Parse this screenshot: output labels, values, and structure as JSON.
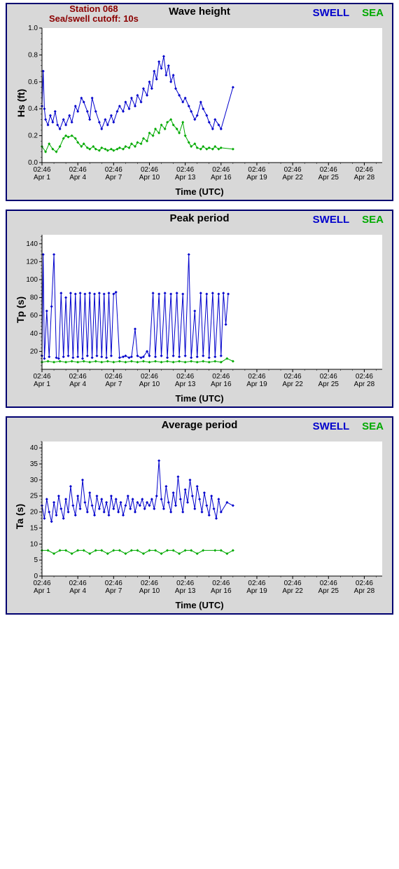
{
  "station_line1": "Station 068",
  "station_line2": "Sea/swell cutoff: 10s",
  "legend_swell": "SWELL",
  "legend_sea": "SEA",
  "xlabel": "Time (UTC)",
  "colors": {
    "swell": "#0000cc",
    "sea": "#00aa00",
    "panel_bg": "#d8d8d8",
    "plot_bg": "#ffffff",
    "border": "#000070",
    "axis": "#000000",
    "station_text": "#8b0000"
  },
  "x_axis": {
    "domain_days": [
      0,
      28.5
    ],
    "ticks_days": [
      0,
      3,
      6,
      9,
      12,
      15,
      18,
      21,
      24,
      27
    ],
    "tick_time": "02:46",
    "tick_dates": [
      "Apr 1",
      "Apr 4",
      "Apr 7",
      "Apr 10",
      "Apr 13",
      "Apr 16",
      "Apr 19",
      "Apr 22",
      "Apr 25",
      "Apr 28"
    ]
  },
  "charts": [
    {
      "title": "Wave height",
      "ylabel": "Hs (ft)",
      "show_station": true,
      "ylim": [
        0.0,
        1.0
      ],
      "yticks": [
        0.0,
        0.2,
        0.4,
        0.6,
        0.8,
        1.0
      ],
      "ytick_labels": [
        "0.0",
        "0.2",
        "0.4",
        "0.6",
        "0.8",
        "1.0"
      ],
      "swell": [
        [
          0.0,
          0.42
        ],
        [
          0.1,
          0.68
        ],
        [
          0.2,
          0.4
        ],
        [
          0.3,
          0.32
        ],
        [
          0.5,
          0.28
        ],
        [
          0.7,
          0.35
        ],
        [
          0.9,
          0.3
        ],
        [
          1.1,
          0.38
        ],
        [
          1.3,
          0.28
        ],
        [
          1.5,
          0.25
        ],
        [
          1.8,
          0.32
        ],
        [
          2.0,
          0.28
        ],
        [
          2.3,
          0.35
        ],
        [
          2.5,
          0.3
        ],
        [
          2.8,
          0.42
        ],
        [
          3.0,
          0.38
        ],
        [
          3.3,
          0.48
        ],
        [
          3.5,
          0.45
        ],
        [
          3.8,
          0.38
        ],
        [
          4.0,
          0.32
        ],
        [
          4.2,
          0.48
        ],
        [
          4.5,
          0.38
        ],
        [
          4.8,
          0.3
        ],
        [
          5.0,
          0.25
        ],
        [
          5.3,
          0.32
        ],
        [
          5.5,
          0.28
        ],
        [
          5.8,
          0.35
        ],
        [
          6.0,
          0.3
        ],
        [
          6.3,
          0.38
        ],
        [
          6.5,
          0.42
        ],
        [
          6.8,
          0.38
        ],
        [
          7.0,
          0.45
        ],
        [
          7.3,
          0.4
        ],
        [
          7.5,
          0.48
        ],
        [
          7.8,
          0.42
        ],
        [
          8.0,
          0.5
        ],
        [
          8.3,
          0.45
        ],
        [
          8.5,
          0.55
        ],
        [
          8.8,
          0.5
        ],
        [
          9.0,
          0.6
        ],
        [
          9.2,
          0.55
        ],
        [
          9.4,
          0.68
        ],
        [
          9.6,
          0.62
        ],
        [
          9.8,
          0.75
        ],
        [
          10.0,
          0.7
        ],
        [
          10.2,
          0.79
        ],
        [
          10.4,
          0.65
        ],
        [
          10.6,
          0.72
        ],
        [
          10.8,
          0.6
        ],
        [
          11.0,
          0.65
        ],
        [
          11.2,
          0.55
        ],
        [
          11.5,
          0.5
        ],
        [
          11.8,
          0.45
        ],
        [
          12.0,
          0.48
        ],
        [
          12.3,
          0.42
        ],
        [
          12.5,
          0.38
        ],
        [
          12.8,
          0.32
        ],
        [
          13.0,
          0.35
        ],
        [
          13.3,
          0.45
        ],
        [
          13.5,
          0.4
        ],
        [
          13.8,
          0.35
        ],
        [
          14.0,
          0.3
        ],
        [
          14.3,
          0.25
        ],
        [
          14.5,
          0.32
        ],
        [
          14.8,
          0.28
        ],
        [
          15.0,
          0.25
        ],
        [
          16.0,
          0.56
        ]
      ],
      "sea": [
        [
          0.0,
          0.12
        ],
        [
          0.3,
          0.08
        ],
        [
          0.6,
          0.14
        ],
        [
          0.9,
          0.1
        ],
        [
          1.2,
          0.08
        ],
        [
          1.5,
          0.12
        ],
        [
          1.8,
          0.18
        ],
        [
          2.0,
          0.2
        ],
        [
          2.2,
          0.19
        ],
        [
          2.5,
          0.2
        ],
        [
          2.8,
          0.18
        ],
        [
          3.0,
          0.15
        ],
        [
          3.3,
          0.12
        ],
        [
          3.5,
          0.14
        ],
        [
          3.8,
          0.11
        ],
        [
          4.0,
          0.1
        ],
        [
          4.3,
          0.12
        ],
        [
          4.5,
          0.1
        ],
        [
          4.8,
          0.09
        ],
        [
          5.0,
          0.11
        ],
        [
          5.3,
          0.1
        ],
        [
          5.5,
          0.09
        ],
        [
          5.8,
          0.1
        ],
        [
          6.0,
          0.09
        ],
        [
          6.3,
          0.1
        ],
        [
          6.5,
          0.11
        ],
        [
          6.8,
          0.1
        ],
        [
          7.0,
          0.12
        ],
        [
          7.3,
          0.11
        ],
        [
          7.5,
          0.14
        ],
        [
          7.8,
          0.12
        ],
        [
          8.0,
          0.15
        ],
        [
          8.3,
          0.14
        ],
        [
          8.5,
          0.18
        ],
        [
          8.8,
          0.16
        ],
        [
          9.0,
          0.22
        ],
        [
          9.3,
          0.2
        ],
        [
          9.5,
          0.25
        ],
        [
          9.8,
          0.22
        ],
        [
          10.0,
          0.28
        ],
        [
          10.3,
          0.25
        ],
        [
          10.5,
          0.3
        ],
        [
          10.8,
          0.32
        ],
        [
          11.0,
          0.28
        ],
        [
          11.3,
          0.25
        ],
        [
          11.5,
          0.22
        ],
        [
          11.8,
          0.3
        ],
        [
          12.0,
          0.2
        ],
        [
          12.3,
          0.15
        ],
        [
          12.5,
          0.12
        ],
        [
          12.8,
          0.14
        ],
        [
          13.0,
          0.11
        ],
        [
          13.3,
          0.1
        ],
        [
          13.5,
          0.12
        ],
        [
          13.8,
          0.1
        ],
        [
          14.0,
          0.11
        ],
        [
          14.3,
          0.1
        ],
        [
          14.5,
          0.12
        ],
        [
          14.8,
          0.1
        ],
        [
          15.0,
          0.11
        ],
        [
          16.0,
          0.1
        ]
      ]
    },
    {
      "title": "Peak period",
      "ylabel": "Tp (s)",
      "show_station": false,
      "ylim": [
        0,
        150
      ],
      "yticks": [
        20,
        40,
        60,
        80,
        100,
        120,
        140
      ],
      "ytick_labels": [
        "20",
        "40",
        "60",
        "80",
        "100",
        "120",
        "140"
      ],
      "swell": [
        [
          0.0,
          15
        ],
        [
          0.1,
          128
        ],
        [
          0.2,
          12
        ],
        [
          0.4,
          65
        ],
        [
          0.6,
          14
        ],
        [
          0.8,
          70
        ],
        [
          1.0,
          128
        ],
        [
          1.2,
          13
        ],
        [
          1.4,
          12
        ],
        [
          1.6,
          85
        ],
        [
          1.8,
          14
        ],
        [
          2.0,
          80
        ],
        [
          2.2,
          15
        ],
        [
          2.4,
          85
        ],
        [
          2.6,
          13
        ],
        [
          2.8,
          84
        ],
        [
          3.0,
          14
        ],
        [
          3.2,
          85
        ],
        [
          3.4,
          12
        ],
        [
          3.6,
          84
        ],
        [
          3.8,
          15
        ],
        [
          4.0,
          85
        ],
        [
          4.2,
          13
        ],
        [
          4.4,
          84
        ],
        [
          4.6,
          15
        ],
        [
          4.8,
          85
        ],
        [
          5.0,
          14
        ],
        [
          5.2,
          84
        ],
        [
          5.4,
          13
        ],
        [
          5.6,
          85
        ],
        [
          5.8,
          15
        ],
        [
          6.0,
          84
        ],
        [
          6.2,
          86
        ],
        [
          6.5,
          13
        ],
        [
          6.8,
          14
        ],
        [
          7.0,
          15
        ],
        [
          7.3,
          13
        ],
        [
          7.5,
          14
        ],
        [
          7.8,
          45
        ],
        [
          8.0,
          15
        ],
        [
          8.3,
          13
        ],
        [
          8.5,
          14
        ],
        [
          8.8,
          20
        ],
        [
          9.0,
          15
        ],
        [
          9.3,
          85
        ],
        [
          9.5,
          14
        ],
        [
          9.8,
          84
        ],
        [
          10.0,
          15
        ],
        [
          10.3,
          85
        ],
        [
          10.5,
          13
        ],
        [
          10.8,
          84
        ],
        [
          11.0,
          15
        ],
        [
          11.3,
          85
        ],
        [
          11.5,
          14
        ],
        [
          11.8,
          84
        ],
        [
          12.0,
          15
        ],
        [
          12.3,
          128
        ],
        [
          12.5,
          13
        ],
        [
          12.8,
          65
        ],
        [
          13.0,
          14
        ],
        [
          13.3,
          85
        ],
        [
          13.5,
          15
        ],
        [
          13.8,
          84
        ],
        [
          14.0,
          13
        ],
        [
          14.3,
          85
        ],
        [
          14.5,
          14
        ],
        [
          14.8,
          84
        ],
        [
          15.0,
          15
        ],
        [
          15.2,
          85
        ],
        [
          15.4,
          50
        ],
        [
          15.6,
          84
        ]
      ],
      "sea": [
        [
          0.0,
          8
        ],
        [
          0.5,
          9
        ],
        [
          1.0,
          8
        ],
        [
          1.5,
          9
        ],
        [
          2.0,
          8
        ],
        [
          2.5,
          9
        ],
        [
          3.0,
          8
        ],
        [
          3.5,
          9
        ],
        [
          4.0,
          8
        ],
        [
          4.5,
          9
        ],
        [
          5.0,
          8
        ],
        [
          5.5,
          9
        ],
        [
          6.0,
          8
        ],
        [
          6.5,
          9
        ],
        [
          7.0,
          8
        ],
        [
          7.5,
          9
        ],
        [
          8.0,
          8
        ],
        [
          8.5,
          9
        ],
        [
          9.0,
          8
        ],
        [
          9.5,
          9
        ],
        [
          10.0,
          8
        ],
        [
          10.5,
          9
        ],
        [
          11.0,
          8
        ],
        [
          11.5,
          9
        ],
        [
          12.0,
          8
        ],
        [
          12.5,
          9
        ],
        [
          13.0,
          8
        ],
        [
          13.5,
          9
        ],
        [
          14.0,
          8
        ],
        [
          14.5,
          9
        ],
        [
          15.0,
          8
        ],
        [
          15.5,
          12
        ],
        [
          16.0,
          9
        ]
      ]
    },
    {
      "title": "Average period",
      "ylabel": "Ta (s)",
      "show_station": false,
      "ylim": [
        0,
        42
      ],
      "yticks": [
        0,
        5,
        10,
        15,
        20,
        25,
        30,
        35,
        40
      ],
      "ytick_labels": [
        "0",
        "5",
        "10",
        "15",
        "20",
        "25",
        "30",
        "35",
        "40"
      ],
      "swell": [
        [
          0.0,
          22
        ],
        [
          0.2,
          18
        ],
        [
          0.4,
          24
        ],
        [
          0.6,
          20
        ],
        [
          0.8,
          17
        ],
        [
          1.0,
          23
        ],
        [
          1.2,
          19
        ],
        [
          1.4,
          25
        ],
        [
          1.6,
          21
        ],
        [
          1.8,
          18
        ],
        [
          2.0,
          24
        ],
        [
          2.2,
          20
        ],
        [
          2.4,
          28
        ],
        [
          2.6,
          22
        ],
        [
          2.8,
          19
        ],
        [
          3.0,
          25
        ],
        [
          3.2,
          21
        ],
        [
          3.4,
          30
        ],
        [
          3.6,
          23
        ],
        [
          3.8,
          20
        ],
        [
          4.0,
          26
        ],
        [
          4.2,
          22
        ],
        [
          4.4,
          19
        ],
        [
          4.6,
          25
        ],
        [
          4.8,
          21
        ],
        [
          5.0,
          24
        ],
        [
          5.2,
          20
        ],
        [
          5.4,
          23
        ],
        [
          5.6,
          19
        ],
        [
          5.8,
          25
        ],
        [
          6.0,
          21
        ],
        [
          6.2,
          24
        ],
        [
          6.4,
          20
        ],
        [
          6.6,
          23
        ],
        [
          6.8,
          19
        ],
        [
          7.0,
          22
        ],
        [
          7.2,
          25
        ],
        [
          7.4,
          21
        ],
        [
          7.6,
          24
        ],
        [
          7.8,
          20
        ],
        [
          8.0,
          23
        ],
        [
          8.2,
          22
        ],
        [
          8.4,
          24
        ],
        [
          8.6,
          21
        ],
        [
          8.8,
          23
        ],
        [
          9.0,
          22
        ],
        [
          9.2,
          24
        ],
        [
          9.4,
          21
        ],
        [
          9.6,
          25
        ],
        [
          9.8,
          36
        ],
        [
          10.0,
          24
        ],
        [
          10.2,
          21
        ],
        [
          10.4,
          28
        ],
        [
          10.6,
          23
        ],
        [
          10.8,
          20
        ],
        [
          11.0,
          26
        ],
        [
          11.2,
          22
        ],
        [
          11.4,
          31
        ],
        [
          11.6,
          24
        ],
        [
          11.8,
          20
        ],
        [
          12.0,
          27
        ],
        [
          12.2,
          23
        ],
        [
          12.4,
          30
        ],
        [
          12.6,
          25
        ],
        [
          12.8,
          21
        ],
        [
          13.0,
          28
        ],
        [
          13.2,
          24
        ],
        [
          13.4,
          20
        ],
        [
          13.6,
          26
        ],
        [
          13.8,
          22
        ],
        [
          14.0,
          19
        ],
        [
          14.2,
          25
        ],
        [
          14.4,
          21
        ],
        [
          14.6,
          18
        ],
        [
          14.8,
          24
        ],
        [
          15.0,
          20
        ],
        [
          15.5,
          23
        ],
        [
          16.0,
          22
        ]
      ],
      "sea": [
        [
          0.0,
          8
        ],
        [
          0.5,
          8
        ],
        [
          1.0,
          7
        ],
        [
          1.5,
          8
        ],
        [
          2.0,
          8
        ],
        [
          2.5,
          7
        ],
        [
          3.0,
          8
        ],
        [
          3.5,
          8
        ],
        [
          4.0,
          7
        ],
        [
          4.5,
          8
        ],
        [
          5.0,
          8
        ],
        [
          5.5,
          7
        ],
        [
          6.0,
          8
        ],
        [
          6.5,
          8
        ],
        [
          7.0,
          7
        ],
        [
          7.5,
          8
        ],
        [
          8.0,
          8
        ],
        [
          8.5,
          7
        ],
        [
          9.0,
          8
        ],
        [
          9.5,
          8
        ],
        [
          10.0,
          7
        ],
        [
          10.5,
          8
        ],
        [
          11.0,
          8
        ],
        [
          11.5,
          7
        ],
        [
          12.0,
          8
        ],
        [
          12.5,
          8
        ],
        [
          13.0,
          7
        ],
        [
          13.5,
          8
        ],
        [
          14.5,
          8
        ],
        [
          15.0,
          8
        ],
        [
          15.5,
          7
        ],
        [
          16.0,
          8
        ]
      ]
    }
  ]
}
